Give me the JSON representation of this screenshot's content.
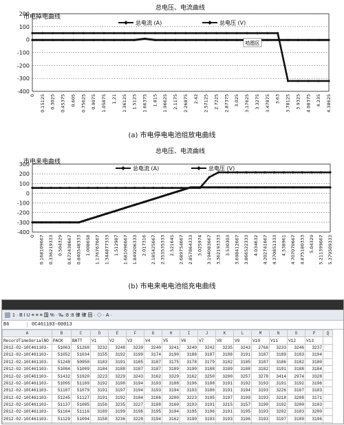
{
  "chart_data": [
    {
      "type": "line",
      "title": "总电压、电流曲线",
      "corner_label": "市电掉电曲线",
      "caption": "(a) 市电停电电池组放电曲线",
      "annotation": "哈图区",
      "series": [
        {
          "name": "总电流 (A)",
          "values": [
            -3,
            -3,
            -3,
            -3,
            -3,
            -3,
            -3,
            -3,
            -3,
            -3,
            -3,
            6,
            -3,
            -3,
            -3,
            -3,
            -3,
            -3,
            -3,
            -3,
            -3,
            -3,
            -3,
            -3,
            -3,
            -3,
            -3,
            -3,
            -3,
            -3
          ]
        },
        {
          "name": "总电压 (V)",
          "values": [
            50,
            50,
            50,
            50,
            50,
            50,
            50,
            50,
            50,
            50,
            50,
            50,
            50,
            50,
            50,
            50,
            50,
            50,
            50,
            50,
            50,
            50,
            50,
            50,
            50,
            -320,
            -320,
            -320,
            -320,
            -320
          ]
        }
      ],
      "x_labels": [
        "0",
        "0.15125",
        "0.3025",
        "0.45375",
        "0.605",
        "0.75625",
        "0.9075",
        "1.05875",
        "1.21",
        "1.36125",
        "1.5125",
        "1.66375",
        "1.815",
        "1.96625",
        "2.1175",
        "2.26875",
        "2.42",
        "2.57125",
        "2.7225",
        "2.87375",
        "3.025",
        "3.17625",
        "3.3275",
        "3.47875",
        "3.63",
        "3.78125",
        "3.9325",
        "4.08375",
        "4.235",
        "4.38625"
      ],
      "yticks": [
        200,
        100,
        0,
        -100,
        -200,
        -300,
        -400
      ],
      "ylim": [
        -400,
        200
      ],
      "grid": true,
      "legend": "top"
    },
    {
      "type": "line",
      "title": "总电压、电流曲线",
      "corner_label": "市电来电曲线",
      "caption": "(b) 市电来电电池组充电曲线",
      "series": [
        {
          "name": "总电流 (A)",
          "values": [
            -300,
            -300,
            -300,
            -300,
            -300,
            -300,
            -270,
            -240,
            -210,
            -180,
            -150,
            -120,
            -90,
            -60,
            -30,
            0,
            30,
            60,
            60,
            60,
            60,
            60,
            60,
            60,
            60,
            60,
            60,
            60,
            60,
            60,
            60,
            60,
            60
          ]
        },
        {
          "name": "总电压 (V)",
          "values": [
            55,
            55,
            55,
            55,
            55,
            55,
            55,
            55,
            55,
            55,
            55,
            55,
            55,
            55,
            55,
            55,
            55,
            55,
            55,
            165,
            215,
            215,
            215,
            215,
            215,
            215,
            215,
            215,
            215,
            215,
            215,
            215,
            215
          ]
        }
      ],
      "x_labels": [
        "0",
        "0.168109667",
        "0.336219333",
        "0.504329",
        "0.672438667",
        "0.840548333",
        "1.008658",
        "1.176767667",
        "1.344877333",
        "1.512987",
        "1.681096667",
        "1.849206333",
        "2.017316",
        "2.185425667",
        "2.353535333",
        "2.521645",
        "2.689754667",
        "2.857864333",
        "3.025974",
        "3.194083667",
        "3.362193333",
        "3.530303",
        "3.698412667",
        "3.866522333",
        "4.034632",
        "4.202741667",
        "4.370851333",
        "4.538961",
        "4.707070667",
        "4.875180333",
        "5.04329",
        "5.211399667",
        "5.379509333"
      ],
      "yticks": [
        300,
        200,
        100,
        0,
        -100,
        -200,
        -300,
        -400
      ],
      "ylim": [
        -400,
        300
      ],
      "grid": true,
      "legend": "top"
    }
  ],
  "spreadsheet": {
    "toolbar_text": "1 · B I U ≡ ≡ ≡ 国 % · ‰ :8 :8 律 律 田 · ◇ · A ·",
    "name_box": "B6",
    "formula": "0C461103-00013",
    "col_letters": [
      "A",
      "B",
      "C",
      "D",
      "E",
      "F",
      "G",
      "H",
      "I",
      "J",
      "K",
      "L",
      "M",
      "N",
      "O",
      "P",
      "Q"
    ],
    "headers": [
      "RecordTimeSerialNO",
      "PACK",
      "BATT",
      "V1",
      "V2",
      "V3",
      "V4",
      "V5",
      "V6",
      "V7",
      "V8",
      "V9",
      "V10",
      "V11",
      "V12",
      "V13",
      ""
    ],
    "rows": [
      [
        "2012-02-10C461103-",
        "51063",
        "51268",
        "3232",
        "3248",
        "3239",
        "3240",
        "3241",
        "3240",
        "3242",
        "3235",
        "3243",
        "2766",
        "3233",
        "3246",
        "3237"
      ],
      [
        "2012-02-10C461103-",
        "51052",
        "51034",
        "3155",
        "3192",
        "3199",
        "3174",
        "3190",
        "3188",
        "3187",
        "3188",
        "3191",
        "3187",
        "3189",
        "3183",
        "3194"
      ],
      [
        "2012-02-10C461103-",
        "51248",
        "50950",
        "3183",
        "3191",
        "3185",
        "3187",
        "3175",
        "3178",
        "3179",
        "3182",
        "3185",
        "3187",
        "3186",
        "3182",
        "3180"
      ],
      [
        "2012-02-10C461103-",
        "51084",
        "51009",
        "3184",
        "3188",
        "3187",
        "3187",
        "3189",
        "3190",
        "3188",
        "3189",
        "3188",
        "3182",
        "3191",
        "3188",
        "3184"
      ],
      [
        "2012-02-10C461103-",
        "51432",
        "51920",
        "3223",
        "3229",
        "3243",
        "3162",
        "3329",
        "3162",
        "3250",
        "3200",
        "3257",
        "3278",
        "3414",
        "2974",
        "3328"
      ],
      [
        "2012-02-10C461103-",
        "51095",
        "51109",
        "3192",
        "3198",
        "3194",
        "3193",
        "3188",
        "3196",
        "3198",
        "3191",
        "3192",
        "3193",
        "3191",
        "3192",
        "3196"
      ],
      [
        "2012-02-10C461103-",
        "51107",
        "51079",
        "3191",
        "3197",
        "3194",
        "3193",
        "3194",
        "3193",
        "3186",
        "3191",
        "3194",
        "3193",
        "3226",
        "3167",
        "3183"
      ],
      [
        "2012-02-10C461103-",
        "51245",
        "51127",
        "3191",
        "3192",
        "3184",
        "3186",
        "3200",
        "3223",
        "3195",
        "3197",
        "3199",
        "3193",
        "3218",
        "3208",
        "3171"
      ],
      [
        "2012-02-10C461103-",
        "51137",
        "51085",
        "3156",
        "3235",
        "3227",
        "3188",
        "3160",
        "3193",
        "3191",
        "3215",
        "3157",
        "3190",
        "3192",
        "3200",
        "3183"
      ],
      [
        "2012-02-10C461103-",
        "51164",
        "51116",
        "3189",
        "3199",
        "3196",
        "3195",
        "3194",
        "3195",
        "3196",
        "3191",
        "3195",
        "3193",
        "3202",
        "3183",
        "3200"
      ],
      [
        "2012-02-10C461103-",
        "51129",
        "51094",
        "3158",
        "3236",
        "3228",
        "3194",
        "3162",
        "3190",
        "3193",
        "3193",
        "3196",
        "3193",
        "3197",
        "3189",
        "3196"
      ],
      [
        "2012-02-10C461103-",
        "51148",
        "51117",
        "3191",
        "3202",
        "3197",
        "3197",
        "3194",
        "3195",
        "3196",
        "3196",
        "3189",
        "3195",
        "3190",
        "3196",
        "3195"
      ],
      [
        "2012-02-10C461103-",
        "51172",
        "51126",
        "3190",
        "3198",
        "3200",
        "3189",
        "3187",
        "3193",
        "3192",
        "3194",
        "3199",
        "3195",
        "3196",
        "3190",
        "3199"
      ]
    ]
  }
}
